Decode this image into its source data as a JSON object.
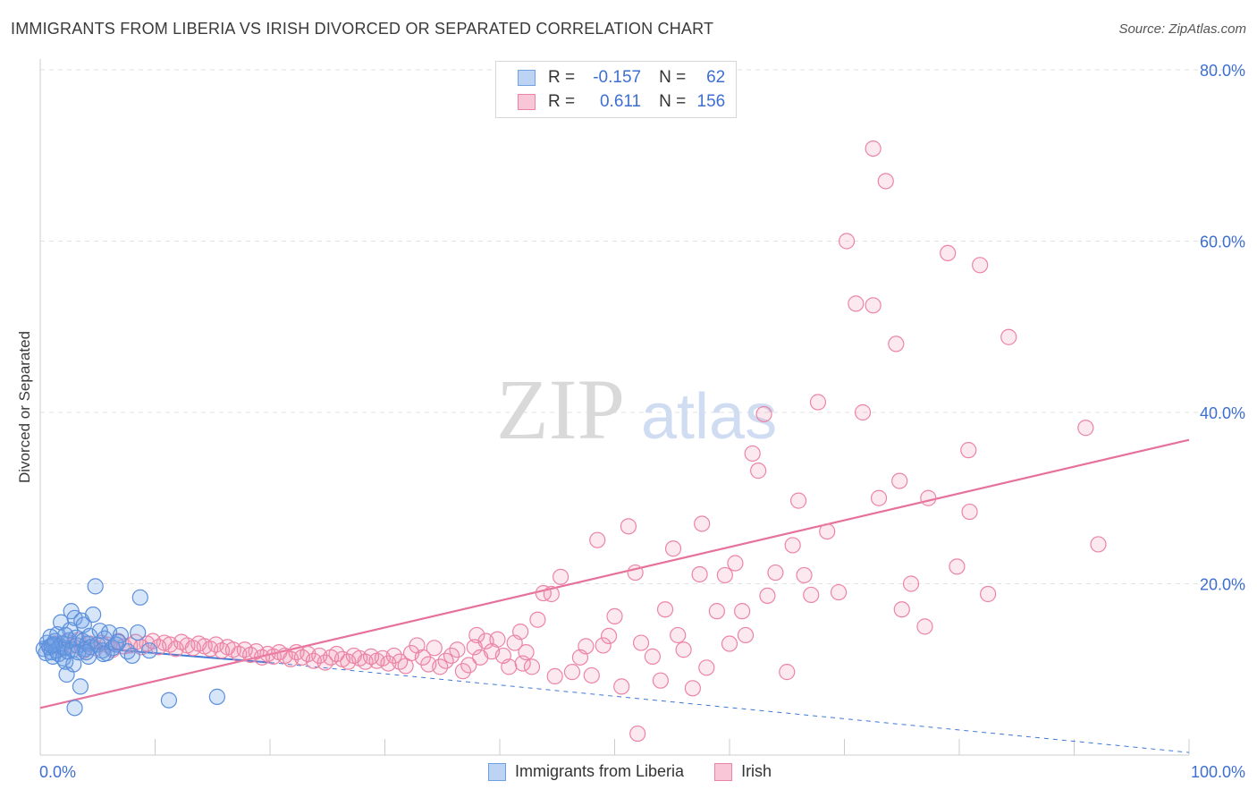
{
  "header": {
    "title": "IMMIGRANTS FROM LIBERIA VS IRISH DIVORCED OR SEPARATED CORRELATION CHART",
    "source": "Source: ZipAtlas.com"
  },
  "watermark": {
    "zip": "ZIP",
    "atlas": "atlas"
  },
  "legend": {
    "r_label": "R =",
    "n_label": "N =",
    "series": [
      {
        "name": "Immigrants from Liberia",
        "r": "-0.157",
        "n": "62",
        "color": "#6fa0e6"
      },
      {
        "name": "Irish",
        "r": "0.611",
        "n": "156",
        "color": "#ec84a6"
      }
    ]
  },
  "chart_data": {
    "type": "scatter",
    "title": "IMMIGRANTS FROM LIBERIA VS IRISH DIVORCED OR SEPARATED CORRELATION CHART",
    "ylabel": "Divorced or Separated",
    "xlabel": "",
    "xlim": [
      0,
      100
    ],
    "ylim": [
      0,
      80
    ],
    "x_tick_labels": [
      "0.0%",
      "100.0%"
    ],
    "y_ticks": [
      20,
      40,
      60,
      80
    ],
    "y_tick_labels": [
      "20.0%",
      "40.0%",
      "60.0%",
      "80.0%"
    ],
    "grid": true,
    "legend_position": "top-center",
    "series": [
      {
        "name": "Immigrants from Liberia",
        "color": "#6fa0e6",
        "trend": {
          "x": [
            0,
            20
          ],
          "y": [
            13.0,
            10.8
          ],
          "extended_dashed_to": [
            100,
            0.3
          ]
        },
        "points": [
          [
            0.3,
            12.4
          ],
          [
            0.5,
            11.9
          ],
          [
            0.6,
            13.1
          ],
          [
            0.8,
            12.6
          ],
          [
            0.9,
            13.8
          ],
          [
            1.0,
            12.0
          ],
          [
            1.1,
            11.5
          ],
          [
            1.2,
            12.9
          ],
          [
            1.3,
            13.3
          ],
          [
            1.4,
            12.2
          ],
          [
            1.5,
            14.1
          ],
          [
            1.6,
            11.8
          ],
          [
            1.7,
            12.7
          ],
          [
            1.8,
            15.5
          ],
          [
            1.9,
            13.0
          ],
          [
            2.0,
            11.3
          ],
          [
            2.1,
            12.5
          ],
          [
            2.2,
            10.9
          ],
          [
            2.3,
            9.4
          ],
          [
            2.4,
            12.1
          ],
          [
            2.5,
            13.4
          ],
          [
            2.6,
            14.6
          ],
          [
            2.7,
            16.8
          ],
          [
            2.8,
            12.3
          ],
          [
            2.9,
            10.6
          ],
          [
            3.0,
            16.0
          ],
          [
            3.1,
            13.7
          ],
          [
            3.2,
            12.8
          ],
          [
            3.3,
            12.0
          ],
          [
            3.5,
            8.0
          ],
          [
            3.6,
            15.7
          ],
          [
            3.7,
            13.3
          ],
          [
            3.8,
            15.2
          ],
          [
            3.9,
            12.4
          ],
          [
            4.1,
            13.0
          ],
          [
            4.2,
            11.5
          ],
          [
            4.3,
            13.9
          ],
          [
            4.4,
            12.6
          ],
          [
            4.6,
            16.4
          ],
          [
            4.8,
            19.7
          ],
          [
            5.0,
            12.9
          ],
          [
            5.2,
            14.5
          ],
          [
            5.4,
            12.2
          ],
          [
            5.6,
            13.6
          ],
          [
            5.8,
            11.9
          ],
          [
            6.0,
            14.3
          ],
          [
            6.3,
            12.5
          ],
          [
            6.6,
            12.9
          ],
          [
            7.0,
            14.0
          ],
          [
            7.6,
            12.1
          ],
          [
            8.0,
            11.6
          ],
          [
            8.5,
            14.3
          ],
          [
            8.7,
            18.4
          ],
          [
            9.5,
            12.2
          ],
          [
            11.2,
            6.4
          ],
          [
            15.4,
            6.8
          ],
          [
            3.0,
            5.5
          ],
          [
            1.0,
            12.8
          ],
          [
            2.2,
            14.0
          ],
          [
            4.0,
            12.0
          ],
          [
            5.5,
            11.8
          ],
          [
            6.8,
            13.2
          ]
        ]
      },
      {
        "name": "Irish",
        "color": "#ec84a6",
        "trend": {
          "x": [
            0,
            100
          ],
          "y": [
            5.5,
            36.8
          ]
        },
        "points": [
          [
            0.8,
            12.6
          ],
          [
            1.3,
            13.0
          ],
          [
            1.8,
            12.4
          ],
          [
            2.3,
            13.2
          ],
          [
            2.8,
            12.8
          ],
          [
            3.3,
            13.4
          ],
          [
            3.8,
            12.2
          ],
          [
            4.3,
            13.0
          ],
          [
            4.8,
            12.5
          ],
          [
            5.3,
            13.1
          ],
          [
            5.8,
            12.9
          ],
          [
            6.3,
            12.3
          ],
          [
            6.8,
            13.3
          ],
          [
            7.3,
            12.7
          ],
          [
            7.8,
            12.8
          ],
          [
            8.3,
            13.2
          ],
          [
            8.8,
            12.6
          ],
          [
            9.3,
            13.0
          ],
          [
            9.8,
            13.3
          ],
          [
            10.3,
            12.6
          ],
          [
            10.8,
            13.1
          ],
          [
            11.3,
            12.9
          ],
          [
            11.8,
            12.4
          ],
          [
            12.3,
            13.2
          ],
          [
            12.8,
            12.8
          ],
          [
            13.3,
            12.5
          ],
          [
            13.8,
            13.0
          ],
          [
            14.3,
            12.7
          ],
          [
            14.8,
            12.4
          ],
          [
            15.3,
            12.9
          ],
          [
            15.8,
            12.2
          ],
          [
            16.3,
            12.6
          ],
          [
            16.8,
            12.3
          ],
          [
            17.3,
            11.8
          ],
          [
            17.8,
            12.3
          ],
          [
            18.3,
            11.7
          ],
          [
            18.8,
            12.1
          ],
          [
            19.3,
            11.4
          ],
          [
            19.8,
            11.8
          ],
          [
            20.3,
            11.5
          ],
          [
            20.8,
            12.0
          ],
          [
            21.3,
            11.6
          ],
          [
            21.8,
            11.2
          ],
          [
            22.3,
            12.0
          ],
          [
            22.8,
            11.4
          ],
          [
            23.3,
            11.8
          ],
          [
            23.8,
            11.0
          ],
          [
            24.3,
            11.6
          ],
          [
            24.8,
            10.8
          ],
          [
            25.3,
            11.4
          ],
          [
            25.8,
            11.8
          ],
          [
            26.3,
            11.2
          ],
          [
            26.8,
            10.9
          ],
          [
            27.3,
            11.6
          ],
          [
            27.8,
            11.3
          ],
          [
            28.3,
            10.9
          ],
          [
            28.8,
            11.5
          ],
          [
            29.3,
            11.0
          ],
          [
            29.8,
            11.3
          ],
          [
            30.3,
            10.7
          ],
          [
            30.8,
            11.6
          ],
          [
            31.3,
            10.9
          ],
          [
            31.8,
            10.4
          ],
          [
            32.3,
            11.9
          ],
          [
            32.8,
            12.8
          ],
          [
            33.3,
            11.4
          ],
          [
            33.8,
            10.6
          ],
          [
            34.3,
            12.5
          ],
          [
            34.8,
            10.3
          ],
          [
            35.3,
            11.0
          ],
          [
            35.8,
            11.6
          ],
          [
            36.3,
            12.3
          ],
          [
            36.8,
            9.8
          ],
          [
            37.3,
            10.5
          ],
          [
            37.8,
            12.6
          ],
          [
            38.3,
            11.4
          ],
          [
            38.8,
            13.3
          ],
          [
            39.3,
            12.1
          ],
          [
            39.8,
            13.5
          ],
          [
            40.3,
            11.6
          ],
          [
            40.8,
            10.3
          ],
          [
            41.3,
            13.1
          ],
          [
            41.8,
            14.4
          ],
          [
            42.3,
            12.0
          ],
          [
            42.8,
            10.3
          ],
          [
            43.3,
            15.8
          ],
          [
            43.8,
            18.9
          ],
          [
            44.5,
            18.8
          ],
          [
            44.8,
            9.2
          ],
          [
            45.3,
            20.8
          ],
          [
            46.3,
            9.7
          ],
          [
            47.0,
            11.4
          ],
          [
            47.5,
            12.7
          ],
          [
            48.0,
            9.3
          ],
          [
            48.5,
            25.1
          ],
          [
            49.0,
            12.8
          ],
          [
            49.5,
            13.9
          ],
          [
            50.0,
            16.2
          ],
          [
            50.6,
            8.0
          ],
          [
            51.2,
            26.7
          ],
          [
            51.8,
            21.3
          ],
          [
            52.3,
            13.1
          ],
          [
            53.3,
            11.5
          ],
          [
            54.0,
            8.7
          ],
          [
            54.4,
            17.0
          ],
          [
            55.1,
            24.1
          ],
          [
            55.5,
            14.0
          ],
          [
            56.0,
            12.3
          ],
          [
            56.8,
            7.8
          ],
          [
            57.4,
            21.1
          ],
          [
            57.6,
            27.0
          ],
          [
            58.0,
            10.2
          ],
          [
            58.9,
            16.8
          ],
          [
            59.6,
            21.0
          ],
          [
            60.0,
            13.0
          ],
          [
            60.5,
            22.4
          ],
          [
            61.1,
            16.8
          ],
          [
            61.4,
            14.0
          ],
          [
            62.0,
            35.2
          ],
          [
            62.5,
            33.2
          ],
          [
            63.0,
            39.8
          ],
          [
            63.3,
            18.6
          ],
          [
            64.0,
            21.3
          ],
          [
            65.0,
            9.7
          ],
          [
            65.5,
            24.5
          ],
          [
            66.0,
            29.7
          ],
          [
            66.5,
            21.0
          ],
          [
            67.1,
            18.7
          ],
          [
            67.7,
            41.2
          ],
          [
            68.5,
            26.1
          ],
          [
            69.5,
            19.0
          ],
          [
            70.2,
            60.0
          ],
          [
            71.0,
            52.7
          ],
          [
            71.6,
            40.0
          ],
          [
            72.5,
            52.5
          ],
          [
            72.5,
            70.8
          ],
          [
            73.0,
            30.0
          ],
          [
            73.6,
            67.0
          ],
          [
            74.5,
            48.0
          ],
          [
            74.8,
            32.0
          ],
          [
            75.0,
            17.0
          ],
          [
            75.8,
            20.0
          ],
          [
            77.0,
            15.0
          ],
          [
            77.3,
            30.0
          ],
          [
            79.0,
            58.6
          ],
          [
            79.8,
            22.0
          ],
          [
            80.8,
            35.6
          ],
          [
            80.9,
            28.4
          ],
          [
            81.8,
            57.2
          ],
          [
            82.5,
            18.8
          ],
          [
            84.3,
            48.8
          ],
          [
            91.0,
            38.2
          ],
          [
            92.1,
            24.6
          ],
          [
            52.0,
            2.5
          ],
          [
            42.0,
            10.7
          ],
          [
            38.0,
            14.0
          ]
        ]
      }
    ]
  }
}
